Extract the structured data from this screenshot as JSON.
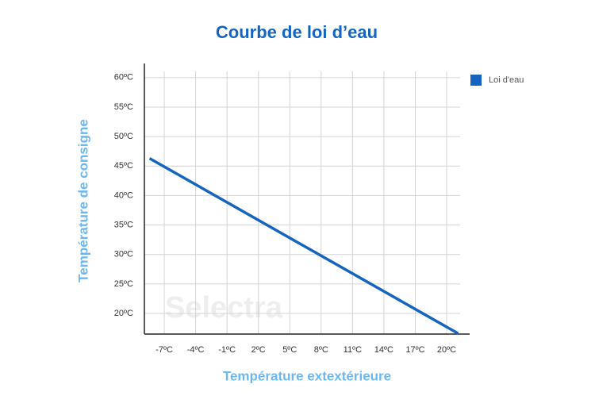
{
  "chart_data": {
    "type": "line",
    "title": "Courbe de loi d’eau",
    "xlabel": "Température extextérieure",
    "ylabel": "Température de consigne",
    "watermark": "Selectra",
    "x": [
      -8.4,
      21.1
    ],
    "series": [
      {
        "name": "Loi d'eau",
        "color": "#1565c0",
        "values": [
          46.3,
          16.6
        ]
      }
    ],
    "xlim": [
      -8.9,
      22.2
    ],
    "xticks": [
      {
        "value": -7,
        "label": "-7ºC"
      },
      {
        "value": -4,
        "label": "-4ºC"
      },
      {
        "value": -1,
        "label": "-1ºC"
      },
      {
        "value": 2,
        "label": "2ºC"
      },
      {
        "value": 5,
        "label": "5ºC"
      },
      {
        "value": 8,
        "label": "8ºC"
      },
      {
        "value": 11,
        "label": "11ºC"
      },
      {
        "value": 14,
        "label": "14ºC"
      },
      {
        "value": 17,
        "label": "17ºC"
      },
      {
        "value": 20,
        "label": "20ºC"
      }
    ],
    "ylim": [
      16.5,
      62.4
    ],
    "yticks": [
      {
        "value": 20,
        "label": "20ºC"
      },
      {
        "value": 25,
        "label": "25ºC"
      },
      {
        "value": 30,
        "label": "30ºC"
      },
      {
        "value": 35,
        "label": "35ºC"
      },
      {
        "value": 40,
        "label": "40ºC"
      },
      {
        "value": 45,
        "label": "45ºC"
      },
      {
        "value": 50,
        "label": "50ºC"
      },
      {
        "value": 55,
        "label": "55ºC"
      },
      {
        "value": 60,
        "label": "60ºC"
      }
    ],
    "grid": true,
    "legend": "upper right"
  }
}
